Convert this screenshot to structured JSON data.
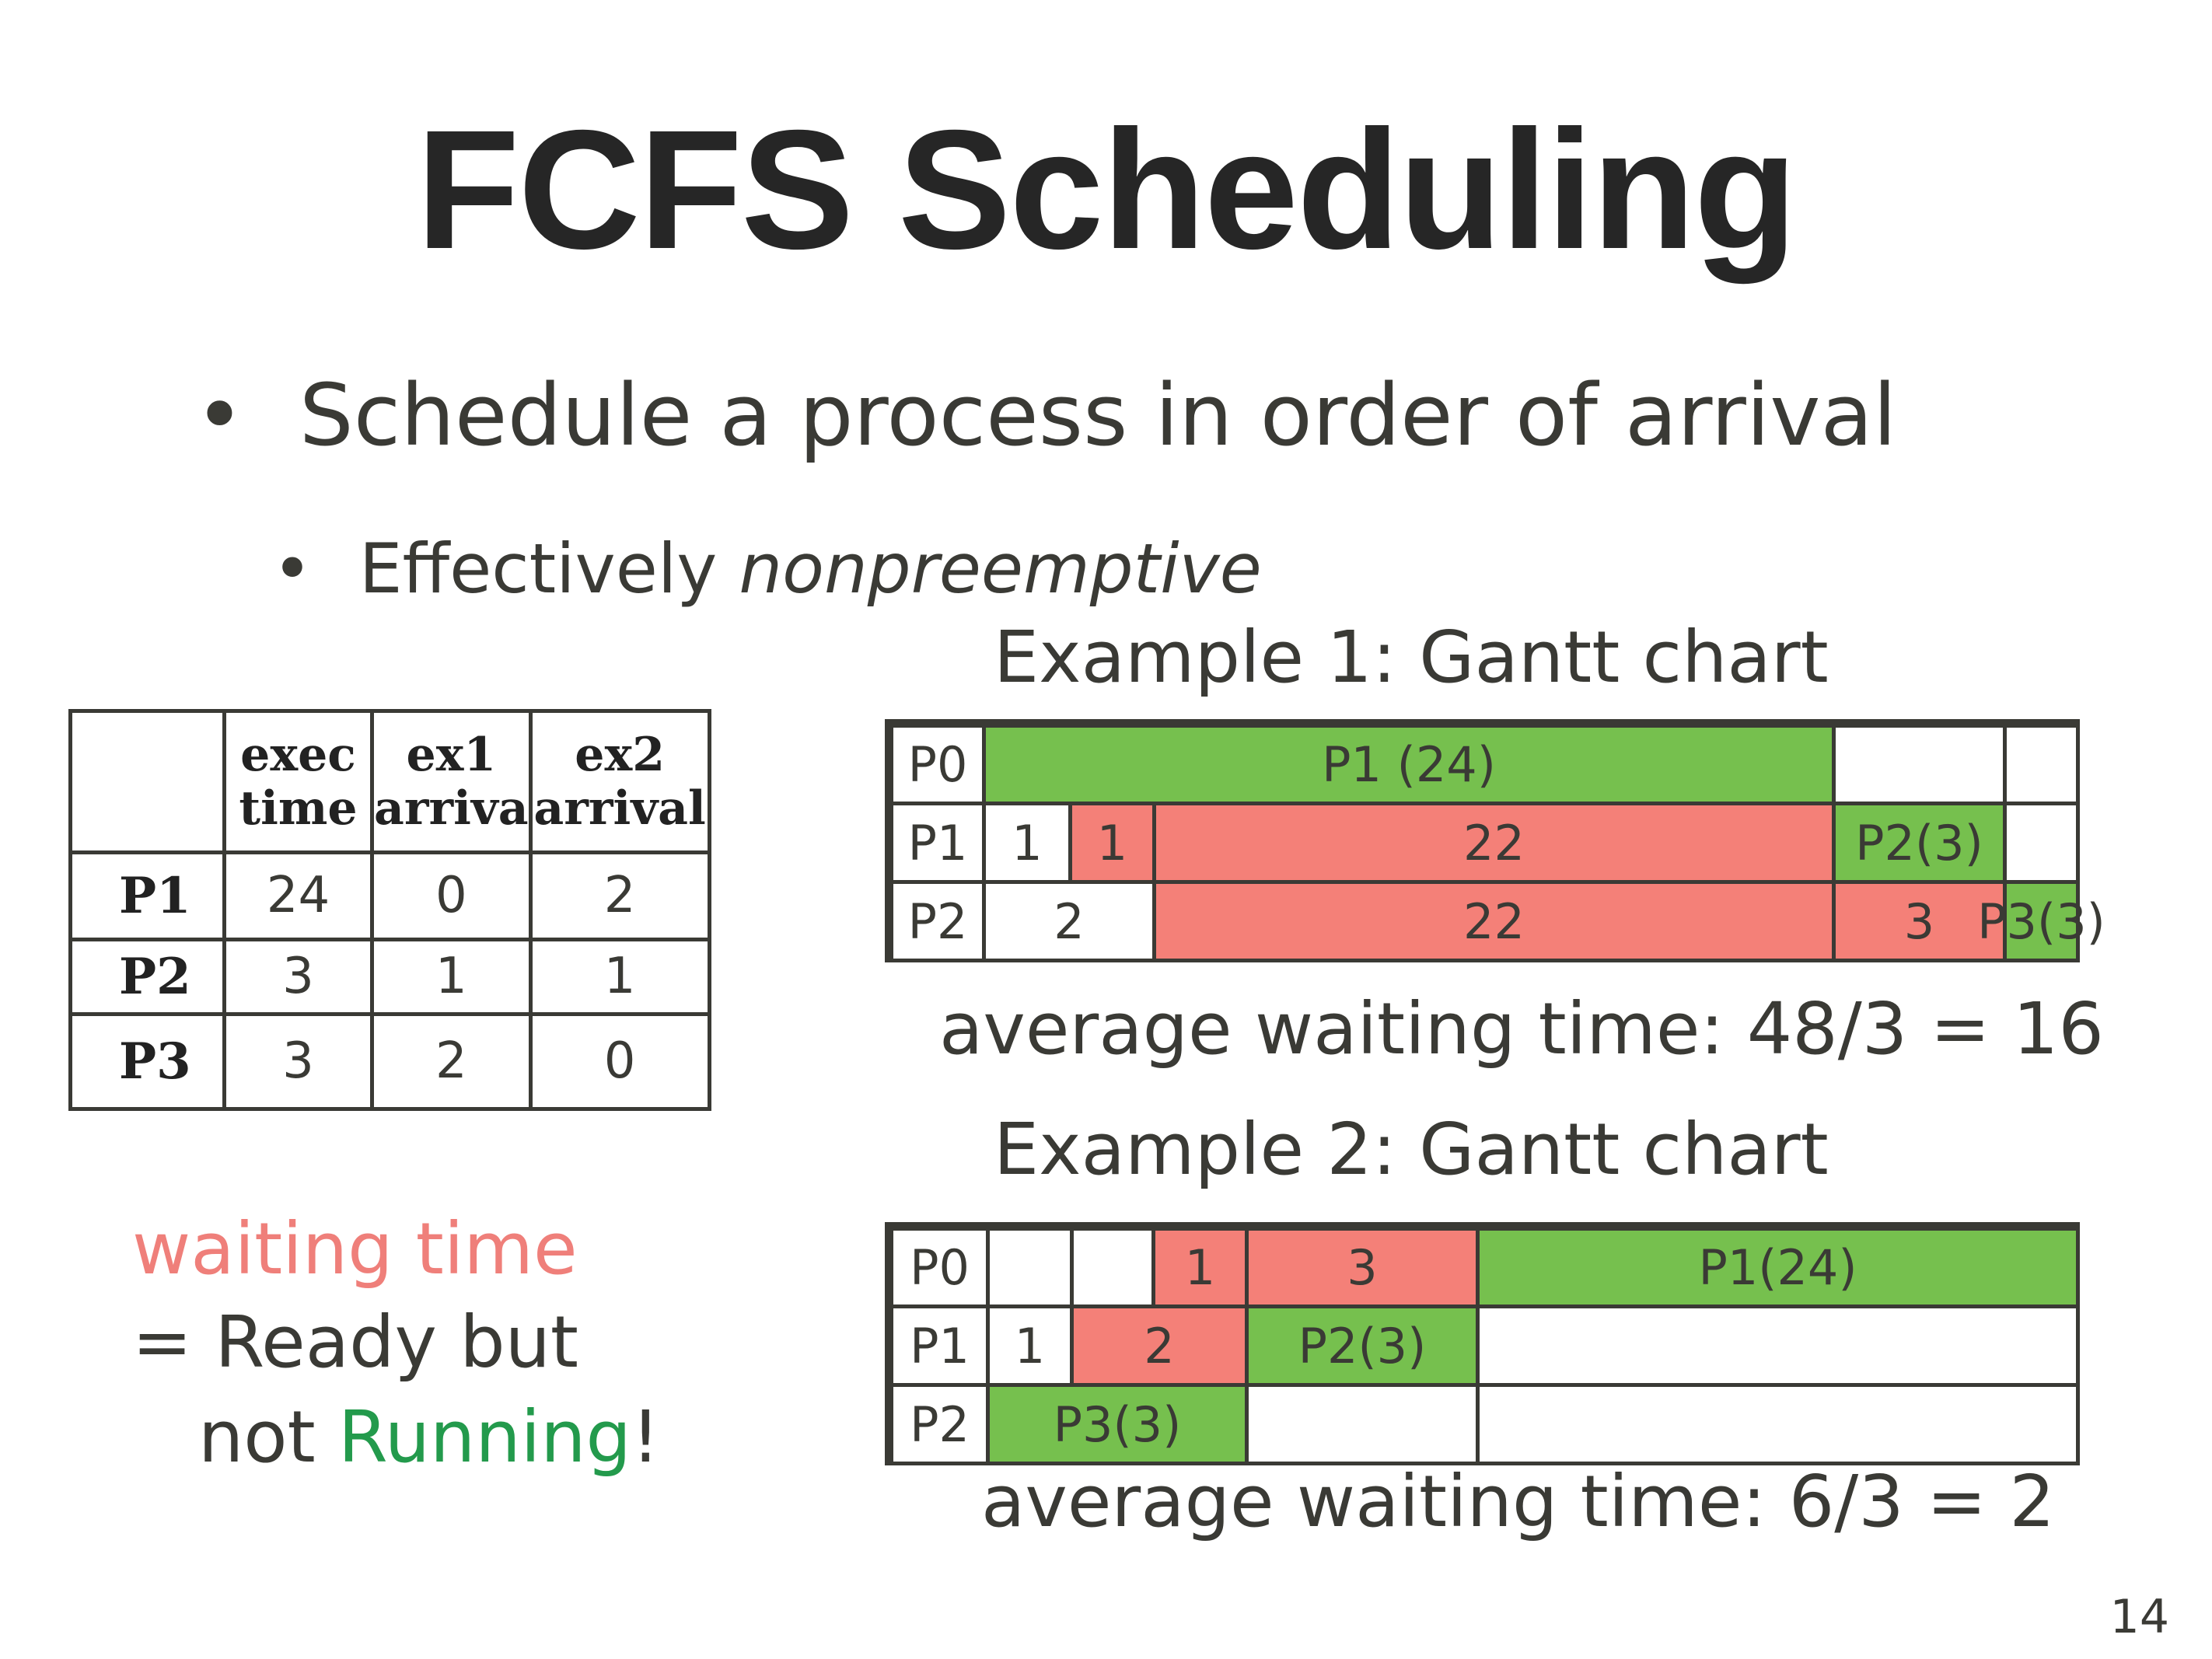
{
  "title": "FCFS Scheduling",
  "bullets": {
    "level1_bullet": "•",
    "level1": "Schedule a process in order of arrival",
    "level2_bullet": "•",
    "level2_prefix": "Effectively ",
    "level2_emph": "nonpreemptive"
  },
  "arrival_table": {
    "headers": [
      [
        "",
        ""
      ],
      [
        "exec",
        "time"
      ],
      [
        "ex1",
        "arriva"
      ],
      [
        "ex2",
        "arrival"
      ]
    ],
    "rows": [
      {
        "name": "P1",
        "exec": "24",
        "ex1": "0",
        "ex2": "2"
      },
      {
        "name": "P2",
        "exec": "3",
        "ex1": "1",
        "ex2": "1"
      },
      {
        "name": "P3",
        "exec": "3",
        "ex1": "2",
        "ex2": "0"
      }
    ]
  },
  "example1": {
    "title": "Example 1: Gantt chart",
    "rows": [
      {
        "label": "P0",
        "cells": [
          {
            "text": "P1 (24)",
            "state": "running"
          },
          {
            "text": "",
            "state": "idle"
          },
          {
            "text": "",
            "state": "idle"
          }
        ]
      },
      {
        "label": "P1",
        "cells": [
          {
            "text": "1",
            "state": "idle"
          },
          {
            "text": "1",
            "state": "waiting"
          },
          {
            "text": "22",
            "state": "waiting"
          },
          {
            "text": "P2(3)",
            "state": "running"
          },
          {
            "text": "",
            "state": "idle"
          }
        ]
      },
      {
        "label": "P2",
        "cells": [
          {
            "text": "2",
            "state": "idle"
          },
          {
            "text": "22",
            "state": "waiting"
          },
          {
            "text": "3",
            "state": "waiting"
          },
          {
            "text": "P3(3)",
            "state": "running"
          }
        ]
      }
    ],
    "average": "average waiting time:  48/3 = 16"
  },
  "example2": {
    "title": "Example 2: Gantt chart",
    "rows": [
      {
        "label": "P0",
        "cells": [
          {
            "text": "",
            "state": "idle"
          },
          {
            "text": "",
            "state": "idle"
          },
          {
            "text": "1",
            "state": "waiting"
          },
          {
            "text": "3",
            "state": "waiting"
          },
          {
            "text": "P1(24)",
            "state": "running"
          }
        ]
      },
      {
        "label": "P1",
        "cells": [
          {
            "text": "1",
            "state": "idle"
          },
          {
            "text": "2",
            "state": "waiting"
          },
          {
            "text": "P2(3)",
            "state": "running"
          },
          {
            "text": "",
            "state": "idle"
          }
        ]
      },
      {
        "label": "P2",
        "cells": [
          {
            "text": "P3(3)",
            "state": "running"
          },
          {
            "text": "",
            "state": "idle"
          },
          {
            "text": "",
            "state": "idle"
          }
        ]
      }
    ],
    "average": "average waiting time:  6/3 = 2"
  },
  "note": {
    "line1": "waiting time",
    "line2": "= Ready but",
    "line3_prefix": "not ",
    "line3_emph": "Running",
    "line3_suffix": "!"
  },
  "colors": {
    "running": "#76c04e",
    "waiting": "#f48078",
    "waiting_text": "#ef7f7a",
    "running_text": "#239a4c"
  },
  "page_number": "14"
}
